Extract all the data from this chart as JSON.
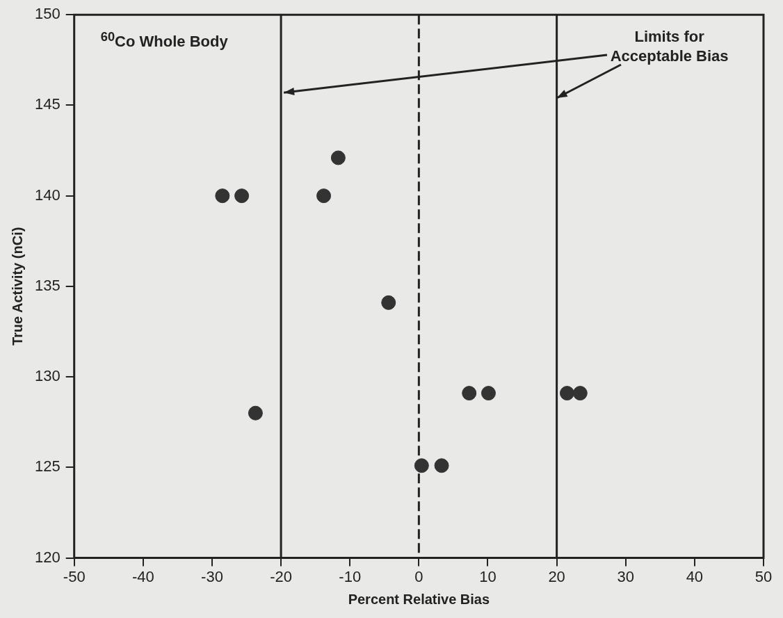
{
  "chart_data": {
    "type": "scatter",
    "xlabel": "Percent Relative Bias",
    "ylabel": "True Activity (nCi)",
    "x": [
      -28.5,
      -25.7,
      -13.8,
      -11.7,
      -4.4,
      -23.7,
      0.4,
      3.3,
      7.3,
      10.1,
      21.5,
      23.4
    ],
    "series": [
      {
        "color": "#333333",
        "values": [
          140,
          140,
          140,
          142.1,
          134.1,
          128,
          125.1,
          125.1,
          129.1,
          129.1,
          129.1,
          129.1
        ]
      }
    ],
    "xlim": [
      -50,
      50
    ],
    "xticks": [
      -50,
      -40,
      -30,
      -20,
      -10,
      0,
      10,
      20,
      30,
      40,
      50
    ],
    "ylim": [
      120,
      150
    ],
    "yticks": [
      120,
      125,
      130,
      135,
      140,
      145,
      150
    ],
    "ref_lines": [
      {
        "axis": "x",
        "value": -20,
        "line_style": "solid",
        "color": "#222222"
      },
      {
        "axis": "x",
        "value": 0,
        "line_style": "dashed",
        "color": "#222222"
      },
      {
        "axis": "x",
        "value": 20,
        "line_style": "solid",
        "color": "#222222"
      }
    ],
    "annotations": [
      "$^{60}$Co Whole Body",
      {
        "text": "Limits for Acceptable Bias",
        "x": 20,
        "y": 145.4
      }
    ],
    "grid": false,
    "legend": false,
    "marker": "circle"
  }
}
